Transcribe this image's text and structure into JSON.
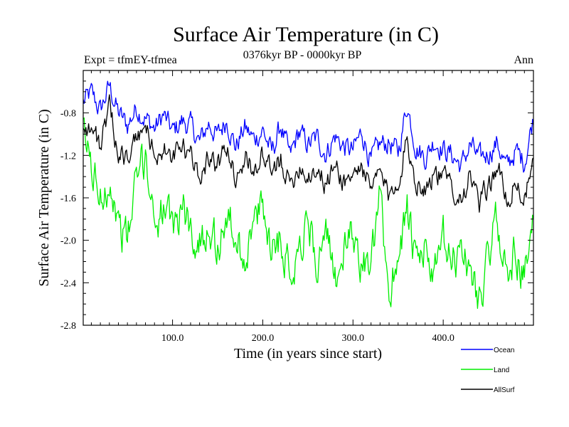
{
  "chart_data": {
    "type": "line",
    "title": "Surface Air Temperature (in C)",
    "subtitle_left": "Expt = tfmEY-tfmea",
    "subtitle_center": "0376kyr BP - 0000kyr BP",
    "subtitle_right": "Ann",
    "xlabel": "Time (in years since start)",
    "ylabel": "Surface Air Temperature (in C)",
    "xlim": [
      1,
      500
    ],
    "ylim": [
      -2.8,
      -0.4
    ],
    "x_ticks": [
      100,
      200,
      300,
      400
    ],
    "x_tick_labels": [
      "100.0",
      "200.0",
      "300.0",
      "400.0"
    ],
    "y_ticks": [
      -2.8,
      -2.4,
      -2.0,
      -1.6,
      -1.2,
      -0.8
    ],
    "y_tick_labels": [
      "-2.8",
      "-2.4",
      "-2.0",
      "-1.6",
      "-1.2",
      "-0.8"
    ],
    "legend_position": "bottom-right, below plot",
    "grid": false,
    "series": [
      {
        "name": "Ocean",
        "color": "#0000ff",
        "x": [
          1,
          10,
          20,
          30,
          40,
          50,
          60,
          70,
          80,
          90,
          100,
          110,
          120,
          130,
          140,
          150,
          160,
          170,
          180,
          190,
          200,
          210,
          220,
          230,
          240,
          250,
          260,
          270,
          280,
          290,
          300,
          310,
          320,
          330,
          340,
          350,
          360,
          370,
          380,
          390,
          400,
          410,
          420,
          430,
          440,
          450,
          460,
          470,
          480,
          490,
          500
        ],
        "y": [
          -0.7,
          -0.62,
          -0.78,
          -0.55,
          -0.8,
          -0.92,
          -0.75,
          -0.85,
          -0.95,
          -0.82,
          -0.98,
          -0.88,
          -0.92,
          -1.08,
          -0.9,
          -1.02,
          -0.86,
          -1.12,
          -0.94,
          -1.05,
          -0.96,
          -1.18,
          -0.92,
          -1.22,
          -0.98,
          -1.1,
          -1.04,
          -1.18,
          -1.02,
          -1.12,
          -1.16,
          -0.98,
          -1.26,
          -1.1,
          -1.08,
          -1.18,
          -0.72,
          -1.12,
          -1.22,
          -1.06,
          -1.14,
          -1.2,
          -1.3,
          -1.1,
          -1.24,
          -1.18,
          -1.08,
          -1.32,
          -1.16,
          -1.26,
          -0.84
        ]
      },
      {
        "name": "Land",
        "color": "#00ee00",
        "x": [
          1,
          10,
          20,
          30,
          40,
          50,
          60,
          70,
          80,
          90,
          100,
          110,
          120,
          130,
          140,
          150,
          160,
          170,
          180,
          190,
          200,
          210,
          220,
          230,
          240,
          250,
          260,
          270,
          280,
          290,
          300,
          310,
          320,
          330,
          340,
          350,
          360,
          370,
          380,
          390,
          400,
          410,
          420,
          430,
          440,
          450,
          460,
          470,
          480,
          490,
          500
        ],
        "y": [
          -1.0,
          -1.3,
          -1.6,
          -1.4,
          -1.85,
          -2.0,
          -1.45,
          -1.2,
          -1.8,
          -1.7,
          -1.95,
          -1.65,
          -1.9,
          -2.05,
          -1.8,
          -2.1,
          -1.75,
          -2.0,
          -2.15,
          -1.85,
          -1.7,
          -2.05,
          -1.95,
          -2.3,
          -2.05,
          -1.8,
          -2.2,
          -2.0,
          -2.35,
          -2.1,
          -1.95,
          -2.2,
          -2.3,
          -1.6,
          -2.5,
          -2.1,
          -1.7,
          -2.3,
          -2.05,
          -2.4,
          -2.0,
          -2.25,
          -2.05,
          -2.3,
          -2.55,
          -2.2,
          -1.75,
          -2.35,
          -2.1,
          -2.35,
          -1.9
        ]
      },
      {
        "name": "AllSurf",
        "color": "#000000",
        "x": [
          1,
          10,
          20,
          30,
          40,
          50,
          60,
          70,
          80,
          90,
          100,
          110,
          120,
          130,
          140,
          150,
          160,
          170,
          180,
          190,
          200,
          210,
          220,
          230,
          240,
          250,
          260,
          270,
          280,
          290,
          300,
          310,
          320,
          330,
          340,
          350,
          360,
          370,
          380,
          390,
          400,
          410,
          420,
          430,
          440,
          450,
          460,
          470,
          480,
          490,
          500
        ],
        "y": [
          -0.9,
          -0.95,
          -1.1,
          -0.78,
          -1.15,
          -1.25,
          -1.05,
          -0.92,
          -1.2,
          -1.15,
          -1.25,
          -1.12,
          -1.22,
          -1.38,
          -1.2,
          -1.3,
          -1.12,
          -1.4,
          -1.22,
          -1.34,
          -1.2,
          -1.4,
          -1.22,
          -1.5,
          -1.28,
          -1.38,
          -1.32,
          -1.48,
          -1.3,
          -1.44,
          -1.4,
          -1.28,
          -1.56,
          -1.34,
          -1.62,
          -1.4,
          -1.06,
          -1.46,
          -1.5,
          -1.36,
          -1.42,
          -1.48,
          -1.6,
          -1.38,
          -1.68,
          -1.5,
          -1.3,
          -1.62,
          -1.46,
          -1.6,
          -1.3
        ]
      }
    ]
  }
}
